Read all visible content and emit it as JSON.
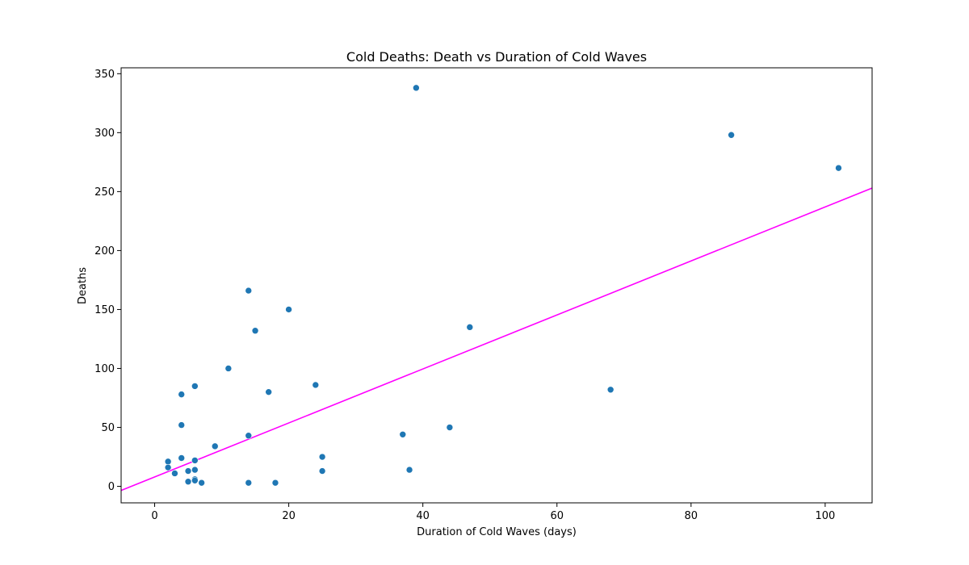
{
  "chart_data": {
    "type": "scatter",
    "title": "Cold Deaths: Death vs Duration of Cold Waves",
    "xlabel": "Duration of Cold Waves (days)",
    "ylabel": "Deaths",
    "xlim": [
      -5,
      107
    ],
    "ylim": [
      -14,
      355
    ],
    "xticks": [
      0,
      20,
      40,
      60,
      80,
      100
    ],
    "yticks": [
      0,
      50,
      100,
      150,
      200,
      250,
      300,
      350
    ],
    "grid": false,
    "legend": "none",
    "point_color": "#1f77b4",
    "line_color": "#ff00ff",
    "series": [
      {
        "x": [
          2,
          2,
          3,
          4,
          4,
          4,
          5,
          5,
          6,
          6,
          6,
          6,
          6,
          7,
          9,
          11,
          14,
          14,
          14,
          15,
          17,
          18,
          20,
          24,
          25,
          25,
          37,
          38,
          39,
          44,
          47,
          68,
          86,
          102
        ],
        "y": [
          21,
          16,
          11,
          24,
          52,
          78,
          13,
          4,
          22,
          14,
          6,
          5,
          85,
          3,
          34,
          100,
          166,
          43,
          3,
          132,
          80,
          3,
          150,
          86,
          25,
          13,
          44,
          14,
          338,
          50,
          135,
          82,
          298,
          270
        ]
      }
    ],
    "trend_line": {
      "x": [
        -5,
        107
      ],
      "y": [
        -3.5,
        253
      ]
    }
  }
}
